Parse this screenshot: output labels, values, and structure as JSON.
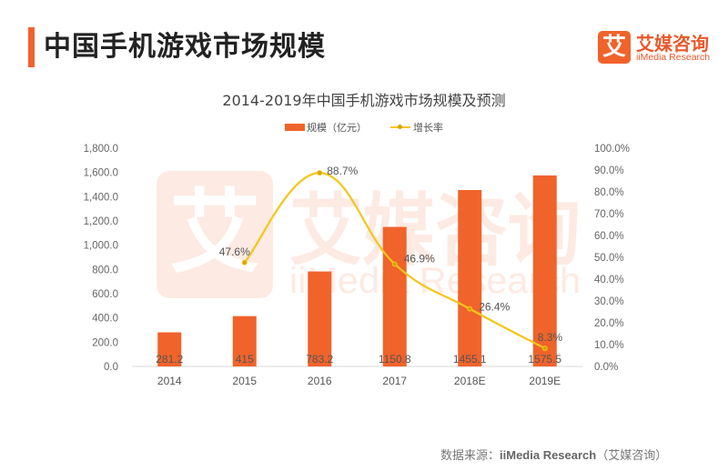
{
  "header": {
    "title": "中国手机游戏市场规模",
    "logo_mark": "艾",
    "logo_cn": "艾媒咨询",
    "logo_en": "iiMedia Research"
  },
  "colors": {
    "accent": "#f0632b",
    "line": "#f5c518",
    "line_marker": "#d4a500"
  },
  "chart_data": {
    "type": "bar",
    "title": "2014-2019年中国手机游戏市场规模及预测",
    "categories": [
      "2014",
      "2015",
      "2016",
      "2017",
      "2018E",
      "2019E"
    ],
    "series": [
      {
        "name": "规模（亿元）",
        "type": "bar",
        "axis": "left",
        "values": [
          281.2,
          415,
          783.2,
          1150.8,
          1455.1,
          1575.5
        ],
        "labels": [
          "281.2",
          "415",
          "783.2",
          "1150.8",
          "1455.1",
          "1575.5"
        ]
      },
      {
        "name": "增长率",
        "type": "line",
        "axis": "right",
        "values": [
          null,
          47.6,
          88.7,
          46.9,
          26.4,
          8.3
        ],
        "labels": [
          "",
          "47.6%",
          "88.7%",
          "46.9%",
          "26.4%",
          "8.3%"
        ]
      }
    ],
    "y_left": {
      "lim": [
        0,
        1800
      ],
      "ticks": [
        "0.0",
        "200.0",
        "400.0",
        "600.0",
        "800.0",
        "1,000.0",
        "1,200.0",
        "1,400.0",
        "1,600.0",
        "1,800.0"
      ]
    },
    "y_right": {
      "lim": [
        0,
        100
      ],
      "ticks": [
        "0.0%",
        "10.0%",
        "20.0%",
        "30.0%",
        "40.0%",
        "50.0%",
        "60.0%",
        "70.0%",
        "80.0%",
        "90.0%",
        "100.0%"
      ]
    },
    "legend_position": "top-center",
    "grid": false
  },
  "watermark": {
    "cn": "艾媒咨询",
    "en": "iiMedia Research"
  },
  "footer": {
    "source_prefix": "数据来源：",
    "source_name": "iiMedia Research",
    "source_suffix": "（艾媒咨询）"
  }
}
